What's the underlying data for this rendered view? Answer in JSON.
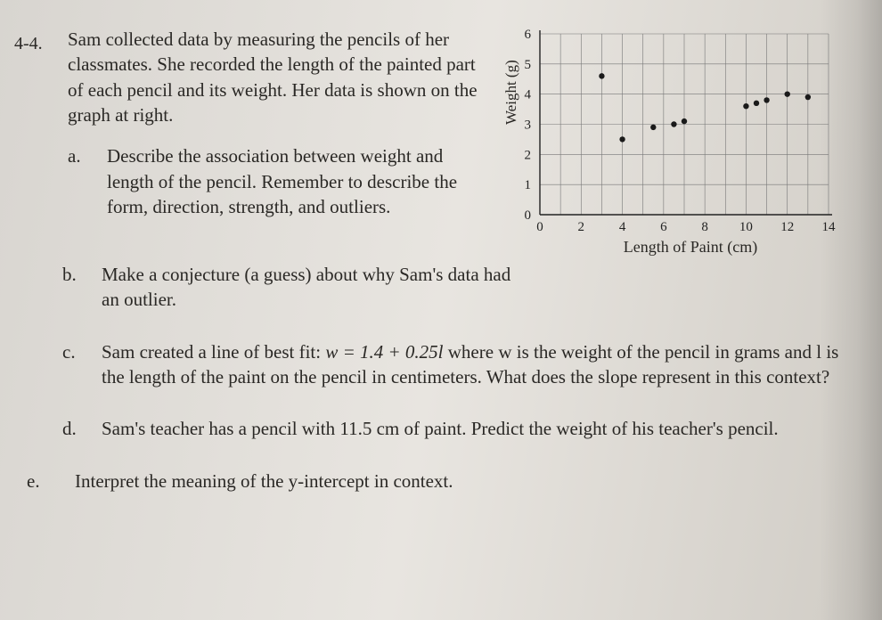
{
  "problem_number": "4-4.",
  "intro": "Sam collected data by measuring the pencils of her classmates. She recorded the length of the painted part of each pencil and its weight. Her data is shown on the graph at right.",
  "parts": {
    "a": {
      "letter": "a.",
      "text": "Describe the association between weight and length of the pencil. Remember to describe the form, direction, strength, and outliers."
    },
    "b": {
      "letter": "b.",
      "text": "Make a conjecture (a guess) about why Sam's data had an outlier."
    },
    "c": {
      "letter": "c.",
      "text_pre": "Sam created a line of best fit: ",
      "eq": "w = 1.4 + 0.25l",
      "text_post": " where w is the weight of the pencil in grams and l is the length of the paint on the pencil in centimeters. What does the slope represent in this context?"
    },
    "d": {
      "letter": "d.",
      "text": "Sam's teacher has a pencil with 11.5 cm of paint. Predict the weight of his teacher's pencil."
    },
    "e": {
      "letter": "e.",
      "text": "Interpret the meaning of the y-intercept in context."
    }
  },
  "chart": {
    "type": "scatter",
    "ylabel": "Weight (g)",
    "xlabel": "Length of Paint (cm)",
    "xlim": [
      0,
      14
    ],
    "ylim": [
      0,
      6
    ],
    "xticks": [
      0,
      2,
      4,
      6,
      8,
      10,
      12,
      14
    ],
    "yticks": [
      0,
      1,
      2,
      3,
      4,
      5,
      6
    ],
    "grid_color": "#777777",
    "axis_color": "#222222",
    "background_color": "transparent",
    "point_color": "#1a1a1a",
    "point_radius": 3.2,
    "points": [
      {
        "x": 3.0,
        "y": 4.6
      },
      {
        "x": 4.0,
        "y": 2.5
      },
      {
        "x": 5.5,
        "y": 2.9
      },
      {
        "x": 6.5,
        "y": 3.0
      },
      {
        "x": 7.0,
        "y": 3.1
      },
      {
        "x": 10.0,
        "y": 3.6
      },
      {
        "x": 10.5,
        "y": 3.7
      },
      {
        "x": 11.0,
        "y": 3.8
      },
      {
        "x": 12.0,
        "y": 4.0
      },
      {
        "x": 13.0,
        "y": 3.9
      }
    ]
  }
}
